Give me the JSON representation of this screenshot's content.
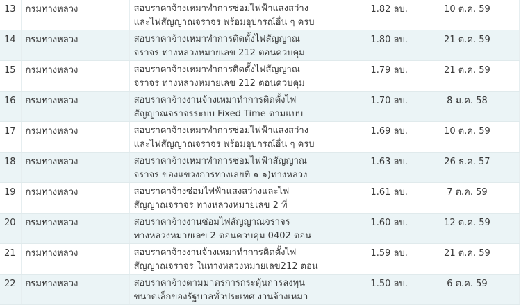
{
  "rows": [
    {
      "no": "13",
      "agency": "กรมทางหลวง",
      "title1": "สอบราคาจ้างเหมาทำการซ่อมไฟฟ้าแสงสว่าง",
      "title2": "และไฟสัญญาณจราจร พร้อมอุปกรณ์อื่น ๆ ครบ",
      "amount": "1.82 ลบ.",
      "date": "10 ต.ค. 59"
    },
    {
      "no": "14",
      "agency": "กรมทางหลวง",
      "title1": "สอบราคาจ้างเหมาทำการติดตั้งไฟสัญญาณ",
      "title2": "จราจร ทางหลวงหมายเลข 212 ตอนควบคุม",
      "amount": "1.80 ลบ.",
      "date": "21 ต.ค. 59"
    },
    {
      "no": "15",
      "agency": "กรมทางหลวง",
      "title1": "สอบราคาจ้างเหมาทำการติดตั้งไฟสัญญาณ",
      "title2": "จราจร ทางหลวงหมายเลข 212 ตอนควบคุม",
      "amount": "1.79 ลบ.",
      "date": "21 ต.ค. 59"
    },
    {
      "no": "16",
      "agency": "กรมทางหลวง",
      "title1": "สอบราคาจ้างงานจ้างเหมาทำการติดตั้งไฟ",
      "title2": "สัญญาณจราจรระบบ Fixed Time ตามแบบ",
      "amount": "1.70 ลบ.",
      "date": "8 ม.ค. 58"
    },
    {
      "no": "17",
      "agency": "กรมทางหลวง",
      "title1": "สอบราคาจ้างเหมาทำการซ่อมไฟฟ้าแสงสว่าง",
      "title2": "และไฟสัญญาณจราจร พร้อมอุปกรณ์อื่น ๆ ครบ",
      "amount": "1.69 ลบ.",
      "date": "10 ต.ค. 59"
    },
    {
      "no": "18",
      "agency": "กรมทางหลวง",
      "title1": "สอบราคาจ้างเหมาทำการซ่อมไฟฟ้าสัญญาณ",
      "title2": "จราจร ของแขวงการทางเลยที่ ๑ ๑)ทางหลวง",
      "amount": "1.63 ลบ.",
      "date": "26 ธ.ค. 57"
    },
    {
      "no": "19",
      "agency": "กรมทางหลวง",
      "title1": "สอบราคาจ้างซ่อมไฟฟ้าแสงสว่างและไฟ",
      "title2": "สัญญาณจราจร ทางหลวงหมายเลข 2 ที่",
      "amount": "1.61 ลบ.",
      "date": "7 ต.ค. 59"
    },
    {
      "no": "20",
      "agency": "กรมทางหลวง",
      "title1": "สอบราคาจ้างงานซ่อมไฟสัญญาณจราจร",
      "title2": "ทางหลวงหมายเลข 2 ตอนควบคุม 0402 ตอน",
      "amount": "1.60 ลบ.",
      "date": "12 ต.ค. 59"
    },
    {
      "no": "21",
      "agency": "กรมทางหลวง",
      "title1": "สอบราคาจ้างงานจ้างเหมาทำการติดตั้งไฟ",
      "title2": "สัญญาณจราจร ในทางหลวงหมายเลข212 ตอน",
      "amount": "1.59 ลบ.",
      "date": "21 ต.ค. 59"
    },
    {
      "no": "22",
      "agency": "กรมทางหลวง",
      "title1": "สอบราคาจ้างตามมาตรการกระตุ้นการลงทุน",
      "title2": "ขนาดเล็กของรัฐบาลทั่วประเทศ งานจ้างเหมา",
      "amount": "1.50 ลบ.",
      "date": "6 ต.ค. 59"
    }
  ]
}
